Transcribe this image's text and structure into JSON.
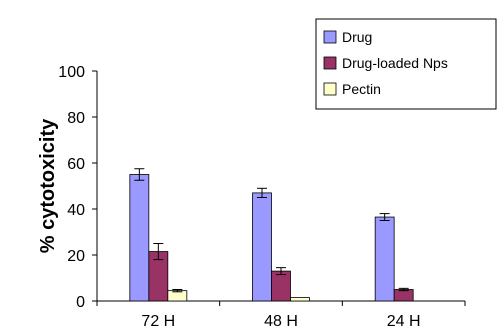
{
  "chart_data": {
    "type": "bar",
    "title": "",
    "xlabel": "",
    "ylabel": "% cytotoxicity",
    "ylim": [
      0,
      100
    ],
    "yticks": [
      "0",
      "20",
      "40",
      "60",
      "80",
      "100"
    ],
    "categories": [
      "72 H",
      "48 H",
      "24 H"
    ],
    "series": [
      {
        "name": "Drug",
        "color": "#9999ff",
        "values": [
          55,
          47,
          36.5
        ],
        "errors": [
          2.5,
          2,
          1.5
        ]
      },
      {
        "name": "Drug-loaded Nps",
        "color": "#993366",
        "values": [
          21.5,
          13,
          5
        ],
        "errors": [
          3.5,
          1.5,
          0.5
        ]
      },
      {
        "name": "Pectin",
        "color": "#ffffcc",
        "values": [
          4.5,
          1.5,
          0
        ],
        "errors": [
          0.5,
          0,
          0
        ]
      }
    ],
    "legend_position": "top-right",
    "grid": false
  }
}
